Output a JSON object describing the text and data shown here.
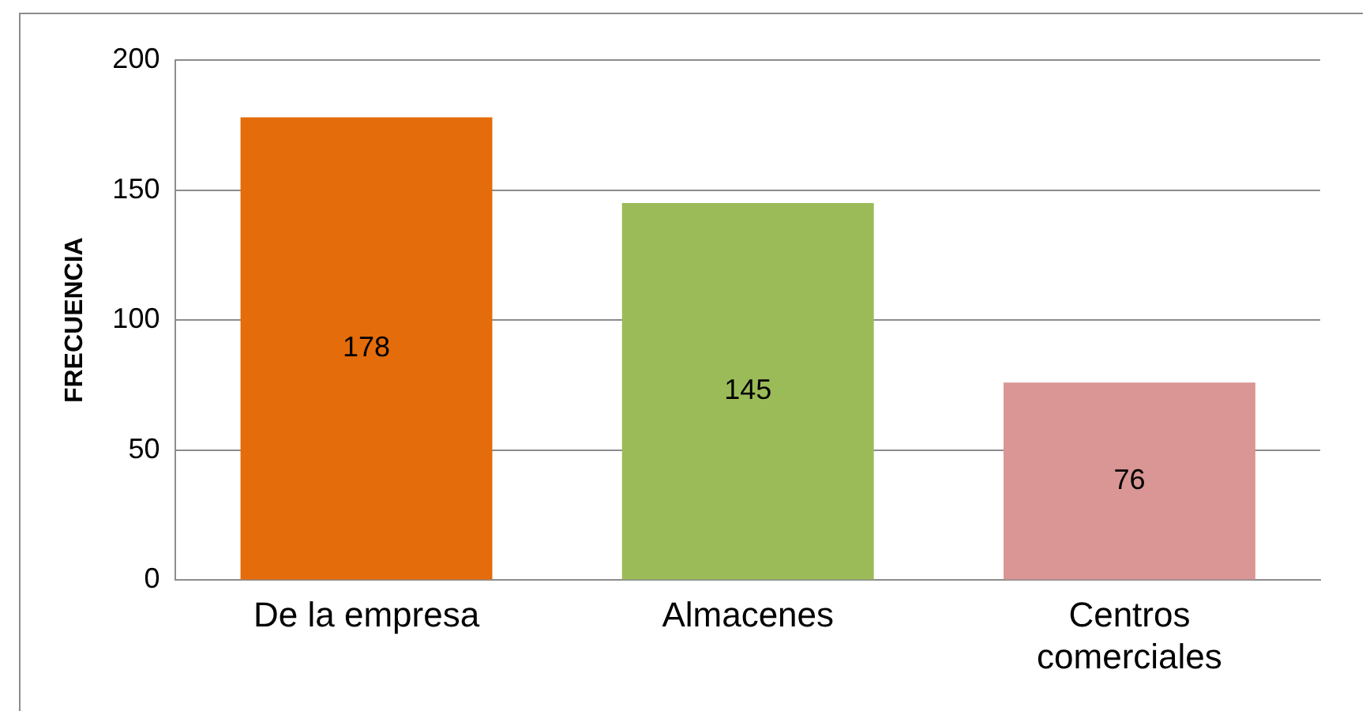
{
  "chart_data": {
    "type": "bar",
    "ylabel": "FRECUENCIA",
    "categories": [
      "De la empresa",
      "Almacenes",
      "Centros comerciales"
    ],
    "values": [
      178,
      145,
      76
    ],
    "colors": [
      "#e46c0a",
      "#9bbb59",
      "#d99694"
    ],
    "ylim": [
      0,
      200
    ],
    "yticks": [
      0,
      50,
      100,
      150,
      200
    ],
    "grid": "y",
    "data_labels": true
  }
}
